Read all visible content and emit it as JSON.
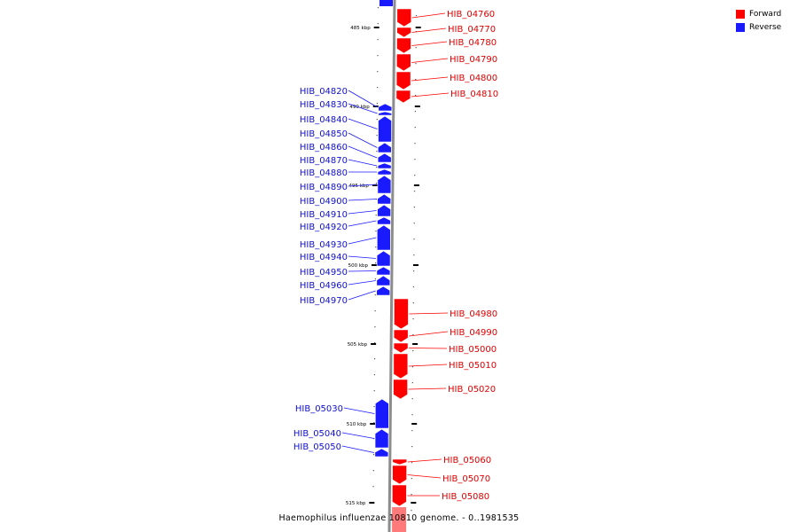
{
  "colors": {
    "forward": "#ff0000",
    "reverse": "#1a1aff",
    "backbone": "#8c8c8c",
    "tick": "#000000"
  },
  "legend": [
    {
      "label": "Forward",
      "key": "forward"
    },
    {
      "label": "Reverse",
      "key": "reverse"
    }
  ],
  "caption": "Haemophilus influenzae 10810 genome. - 0..1981535",
  "ticks": [
    "485 kbp",
    "490 kbp",
    "495 kbp",
    "500 kbp",
    "505 kbp",
    "510 kbp",
    "515 kbp"
  ],
  "genes": [
    {
      "id": "HIB_04760",
      "strand": "forward"
    },
    {
      "id": "HIB_04770",
      "strand": "forward"
    },
    {
      "id": "HIB_04780",
      "strand": "forward"
    },
    {
      "id": "HIB_04790",
      "strand": "forward"
    },
    {
      "id": "HIB_04800",
      "strand": "forward"
    },
    {
      "id": "HIB_04810",
      "strand": "forward"
    },
    {
      "id": "HIB_04820",
      "strand": "reverse"
    },
    {
      "id": "HIB_04830",
      "strand": "reverse"
    },
    {
      "id": "HIB_04840",
      "strand": "reverse"
    },
    {
      "id": "HIB_04850",
      "strand": "reverse"
    },
    {
      "id": "HIB_04860",
      "strand": "reverse"
    },
    {
      "id": "HIB_04870",
      "strand": "reverse"
    },
    {
      "id": "HIB_04880",
      "strand": "reverse"
    },
    {
      "id": "HIB_04890",
      "strand": "reverse"
    },
    {
      "id": "HIB_04900",
      "strand": "reverse"
    },
    {
      "id": "HIB_04910",
      "strand": "reverse"
    },
    {
      "id": "HIB_04920",
      "strand": "reverse"
    },
    {
      "id": "HIB_04930",
      "strand": "reverse"
    },
    {
      "id": "HIB_04940",
      "strand": "reverse"
    },
    {
      "id": "HIB_04950",
      "strand": "reverse"
    },
    {
      "id": "HIB_04960",
      "strand": "reverse"
    },
    {
      "id": "HIB_04970",
      "strand": "reverse"
    },
    {
      "id": "HIB_04980",
      "strand": "forward"
    },
    {
      "id": "HIB_04990",
      "strand": "forward"
    },
    {
      "id": "HIB_05000",
      "strand": "forward"
    },
    {
      "id": "HIB_05010",
      "strand": "forward"
    },
    {
      "id": "HIB_05020",
      "strand": "forward"
    },
    {
      "id": "HIB_05030",
      "strand": "reverse"
    },
    {
      "id": "HIB_05040",
      "strand": "reverse"
    },
    {
      "id": "HIB_05050",
      "strand": "reverse"
    },
    {
      "id": "HIB_05060",
      "strand": "forward"
    },
    {
      "id": "HIB_05070",
      "strand": "forward"
    },
    {
      "id": "HIB_05080",
      "strand": "forward"
    }
  ]
}
